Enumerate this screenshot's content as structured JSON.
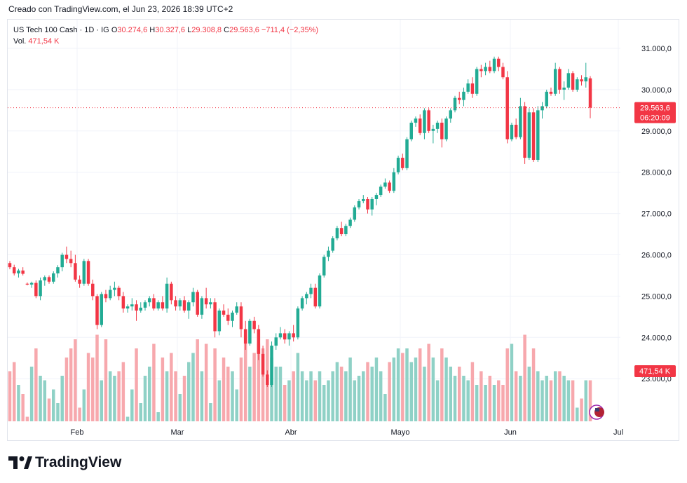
{
  "header": {
    "caption": "Creado con TradingView.com, el Jun 23, 2026 18:39 UTC+2"
  },
  "legend": {
    "symbol": "US Tech 100 Cash · 1D · IG",
    "open_label": "O",
    "open": "30.274,6",
    "high_label": "H",
    "high": "30.327,6",
    "low_label": "L",
    "low": "29.308,8",
    "close_label": "C",
    "close": "29.563,6",
    "change": "−711,4 (−2,35%)",
    "vol_label": "Vol.",
    "vol": "471,54 K"
  },
  "price_tag": {
    "price": "29.563,6",
    "countdown": "06:20:09"
  },
  "volume_tag": "471,54 K",
  "brand": {
    "name": "TradingView"
  },
  "colors": {
    "up": "#22ab94",
    "down": "#f23645",
    "up_vol": "#8fd1c6",
    "down_vol": "#f7a8ad",
    "grid": "#f0f3fa"
  },
  "chart_data": {
    "type": "candlestick",
    "instrument": "US Tech 100 Cash",
    "interval": "1D",
    "x_labels": [
      "Feb",
      "Mar",
      "Abr",
      "Mayo",
      "Jun",
      "Jul"
    ],
    "y_ticks": [
      "31.000,0",
      "30.000,0",
      "29.000,0",
      "28.000,0",
      "27.000,0",
      "26.000,0",
      "25.000,0",
      "24.000,0",
      "23.000,0"
    ],
    "ylim": [
      22000,
      31500
    ],
    "grid": true,
    "last_price": 29563.6,
    "candles": [
      [
        25800,
        25850,
        25650,
        25700,
        55
      ],
      [
        25700,
        25760,
        25500,
        25550,
        65
      ],
      [
        25550,
        25660,
        25450,
        25620,
        40
      ],
      [
        25620,
        25700,
        25500,
        25540,
        30
      ],
      [
        25300,
        25330,
        25260,
        25280,
        5
      ],
      [
        25280,
        25350,
        25200,
        25320,
        60
      ],
      [
        25320,
        25380,
        24950,
        25000,
        80
      ],
      [
        25000,
        25450,
        24900,
        25380,
        50
      ],
      [
        25380,
        25500,
        25250,
        25460,
        45
      ],
      [
        25460,
        25500,
        25300,
        25350,
        25
      ],
      [
        25350,
        25600,
        25300,
        25550,
        35
      ],
      [
        25550,
        25750,
        25450,
        25700,
        20
      ],
      [
        25700,
        26050,
        25600,
        26000,
        50
      ],
      [
        26000,
        26200,
        25800,
        25900,
        70
      ],
      [
        25900,
        26100,
        25700,
        25800,
        80
      ],
      [
        25800,
        26000,
        25350,
        25400,
        90
      ],
      [
        25400,
        25500,
        25200,
        25300,
        15
      ],
      [
        25300,
        25900,
        25250,
        25850,
        35
      ],
      [
        25850,
        25900,
        25250,
        25300,
        75
      ],
      [
        25300,
        25400,
        24900,
        25000,
        70
      ],
      [
        25000,
        25050,
        24200,
        24300,
        95
      ],
      [
        24300,
        25100,
        24250,
        25050,
        45
      ],
      [
        25050,
        25150,
        24850,
        24950,
        90
      ],
      [
        24950,
        25250,
        24900,
        25150,
        55
      ],
      [
        25150,
        25350,
        25000,
        25200,
        50
      ],
      [
        25200,
        25250,
        24900,
        25000,
        55
      ],
      [
        25000,
        25100,
        24600,
        24700,
        65
      ],
      [
        24700,
        24800,
        24600,
        24750,
        5
      ],
      [
        24750,
        24950,
        24650,
        24800,
        35
      ],
      [
        24800,
        24900,
        24400,
        24650,
        80
      ],
      [
        24650,
        24850,
        24600,
        24720,
        20
      ],
      [
        24720,
        24900,
        24650,
        24850,
        50
      ],
      [
        24850,
        25000,
        24750,
        24950,
        60
      ],
      [
        24950,
        25050,
        24650,
        24700,
        85
      ],
      [
        24700,
        24900,
        24650,
        24850,
        10
      ],
      [
        24850,
        25000,
        24650,
        24700,
        70
      ],
      [
        24700,
        25450,
        24600,
        25300,
        55
      ],
      [
        25300,
        25350,
        24800,
        24900,
        75
      ],
      [
        24900,
        25000,
        24650,
        24750,
        55
      ],
      [
        24750,
        24950,
        24650,
        24900,
        30
      ],
      [
        24900,
        25000,
        24600,
        24650,
        50
      ],
      [
        24650,
        24900,
        24450,
        24850,
        65
      ],
      [
        24850,
        25200,
        24750,
        25100,
        75
      ],
      [
        25100,
        25150,
        24500,
        24550,
        90
      ],
      [
        24550,
        25000,
        24450,
        24950,
        55
      ],
      [
        24950,
        25200,
        24700,
        24800,
        85
      ],
      [
        24800,
        24950,
        24700,
        24850,
        20
      ],
      [
        24850,
        24950,
        24000,
        24150,
        80
      ],
      [
        24150,
        24700,
        24050,
        24650,
        45
      ],
      [
        24650,
        24800,
        24500,
        24550,
        70
      ],
      [
        24550,
        24700,
        24300,
        24400,
        60
      ],
      [
        24400,
        24650,
        24250,
        24600,
        55
      ],
      [
        24600,
        24850,
        24550,
        24750,
        35
      ],
      [
        24750,
        24850,
        24000,
        24200,
        70
      ],
      [
        24200,
        24400,
        23700,
        23850,
        95
      ],
      [
        23850,
        24450,
        23800,
        24400,
        60
      ],
      [
        24400,
        24500,
        24100,
        24200,
        75
      ],
      [
        24200,
        24300,
        23450,
        23600,
        85
      ],
      [
        23600,
        23800,
        23050,
        23100,
        80
      ],
      [
        23100,
        23200,
        22800,
        22850,
        90
      ],
      [
        22850,
        23900,
        22800,
        23800,
        70
      ],
      [
        23800,
        24100,
        23700,
        24000,
        60
      ],
      [
        24000,
        24250,
        23950,
        24100,
        60
      ],
      [
        24100,
        24200,
        23850,
        23950,
        40
      ],
      [
        23950,
        24150,
        23800,
        24100,
        45
      ],
      [
        24100,
        24300,
        23900,
        24000,
        55
      ],
      [
        24000,
        24750,
        23950,
        24700,
        75
      ],
      [
        24700,
        25000,
        24650,
        24950,
        55
      ],
      [
        24950,
        25100,
        24800,
        25050,
        45
      ],
      [
        25050,
        25300,
        24950,
        25200,
        55
      ],
      [
        25200,
        25300,
        24700,
        24750,
        45
      ],
      [
        24750,
        25550,
        24700,
        25500,
        55
      ],
      [
        25500,
        26000,
        25450,
        25950,
        40
      ],
      [
        25950,
        26200,
        25850,
        26100,
        45
      ],
      [
        26100,
        26450,
        26050,
        26400,
        55
      ],
      [
        26400,
        26700,
        26350,
        26650,
        65
      ],
      [
        26650,
        26800,
        26450,
        26500,
        60
      ],
      [
        26500,
        26750,
        26450,
        26700,
        55
      ],
      [
        26700,
        26900,
        26650,
        26850,
        70
      ],
      [
        26850,
        27200,
        26800,
        27150,
        45
      ],
      [
        27150,
        27350,
        27100,
        27300,
        50
      ],
      [
        27300,
        27450,
        27250,
        27350,
        55
      ],
      [
        27350,
        27400,
        27000,
        27100,
        65
      ],
      [
        27100,
        27400,
        26950,
        27350,
        60
      ],
      [
        27350,
        27500,
        27200,
        27450,
        70
      ],
      [
        27450,
        27700,
        27400,
        27650,
        55
      ],
      [
        27650,
        27850,
        27600,
        27750,
        30
      ],
      [
        27750,
        27800,
        27500,
        27550,
        65
      ],
      [
        27550,
        28100,
        27500,
        28000,
        70
      ],
      [
        28000,
        28400,
        27950,
        28350,
        80
      ],
      [
        28350,
        28450,
        28050,
        28100,
        75
      ],
      [
        28100,
        28850,
        28050,
        28800,
        80
      ],
      [
        28800,
        29250,
        28750,
        29200,
        65
      ],
      [
        29200,
        29350,
        29100,
        29300,
        70
      ],
      [
        29300,
        29400,
        28900,
        28950,
        80
      ],
      [
        28950,
        29550,
        28800,
        29500,
        60
      ],
      [
        29500,
        29550,
        28950,
        29000,
        85
      ],
      [
        29000,
        29150,
        28700,
        29050,
        70
      ],
      [
        29050,
        29250,
        28950,
        29200,
        45
      ],
      [
        29200,
        29300,
        28600,
        28800,
        80
      ],
      [
        28800,
        29350,
        28750,
        29300,
        70
      ],
      [
        29300,
        29550,
        29200,
        29500,
        60
      ],
      [
        29500,
        29850,
        29450,
        29800,
        50
      ],
      [
        29800,
        29950,
        29650,
        29750,
        60
      ],
      [
        29750,
        30050,
        29600,
        29950,
        50
      ],
      [
        29950,
        30250,
        29900,
        30150,
        45
      ],
      [
        30150,
        30300,
        29800,
        29900,
        65
      ],
      [
        29900,
        30550,
        29850,
        30500,
        40
      ],
      [
        30500,
        30600,
        30300,
        30450,
        55
      ],
      [
        30450,
        30650,
        30350,
        30550,
        40
      ],
      [
        30550,
        30700,
        30400,
        30450,
        50
      ],
      [
        30450,
        30800,
        30400,
        30750,
        40
      ],
      [
        30750,
        30800,
        30450,
        30550,
        45
      ],
      [
        30550,
        30650,
        30250,
        30300,
        40
      ],
      [
        30300,
        30450,
        28700,
        28800,
        80
      ],
      [
        28800,
        29200,
        28750,
        29150,
        85
      ],
      [
        29150,
        29300,
        28800,
        28850,
        55
      ],
      [
        28850,
        29800,
        28800,
        29600,
        50
      ],
      [
        29600,
        29700,
        28200,
        28350,
        95
      ],
      [
        28350,
        29550,
        28300,
        29450,
        60
      ],
      [
        29450,
        29550,
        28250,
        28300,
        80
      ],
      [
        28300,
        29600,
        28250,
        29500,
        55
      ],
      [
        29500,
        29700,
        29300,
        29600,
        45
      ],
      [
        29600,
        30000,
        29550,
        29950,
        50
      ],
      [
        29950,
        30050,
        29850,
        29900,
        45
      ],
      [
        29900,
        30650,
        29850,
        30500,
        55
      ],
      [
        30500,
        30550,
        29900,
        30000,
        55
      ],
      [
        30000,
        30200,
        29750,
        30050,
        50
      ],
      [
        30050,
        30500,
        30000,
        30400,
        45
      ],
      [
        30400,
        30450,
        29950,
        30000,
        45
      ],
      [
        30000,
        30300,
        29950,
        30250,
        15
      ],
      [
        30250,
        30350,
        30100,
        30200,
        25
      ],
      [
        30200,
        30650,
        30050,
        30300,
        45
      ],
      [
        30274.6,
        30327.6,
        29308.8,
        29563.6,
        45
      ]
    ]
  }
}
